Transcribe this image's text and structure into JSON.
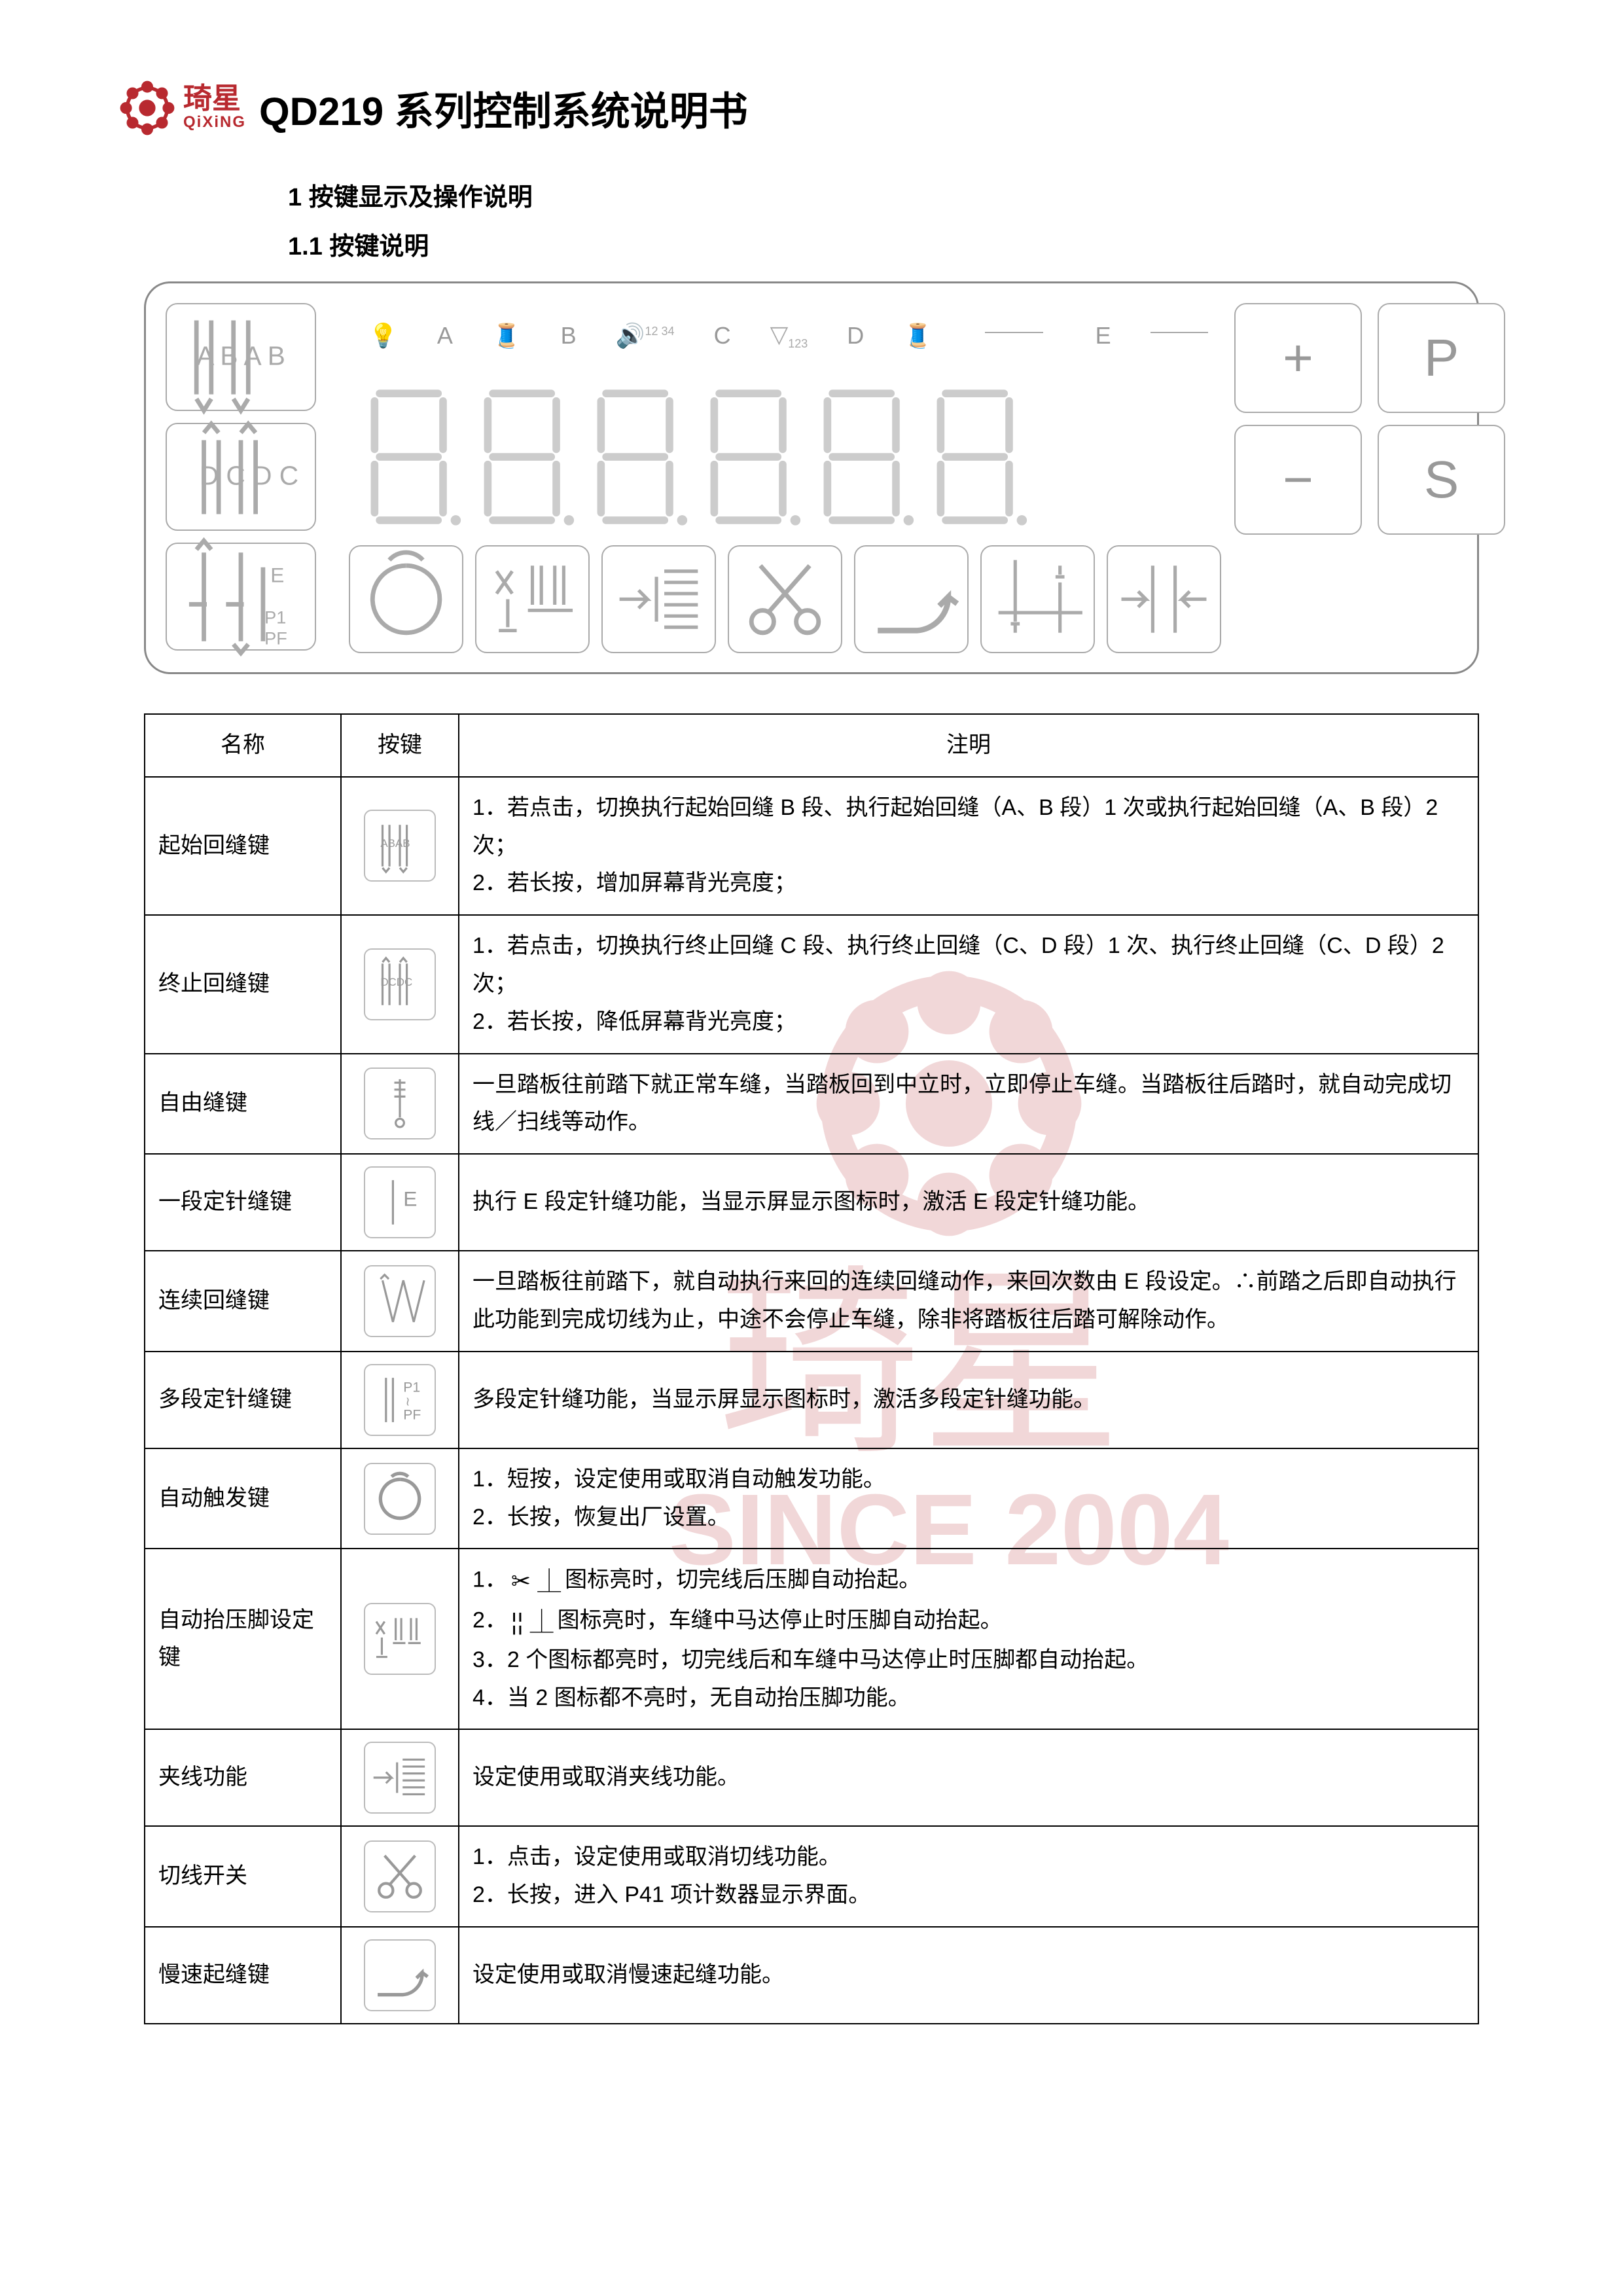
{
  "brand": {
    "cn": "琦星",
    "en": "QiXiNG",
    "logo_color": "#b8292f"
  },
  "doc_title": "QD219 系列控制系统说明书",
  "section1_heading": "1 按键显示及操作说明",
  "section1_1_heading": "1.1 按键说明",
  "panel": {
    "top_labels": [
      "A",
      "B",
      "C",
      "D",
      "E"
    ],
    "right_buttons": [
      "+",
      "P",
      "−",
      "S"
    ],
    "digit_count": 6
  },
  "table": {
    "headers": {
      "name": "名称",
      "button": "按键",
      "desc": "注明"
    },
    "rows": [
      {
        "name": "起始回缝键",
        "icon": "btn-start-backtack",
        "desc_lines": [
          "1．若点击，切换执行起始回缝 B 段、执行起始回缝（A、B 段）1 次或执行起始回缝（A、B 段）2 次；",
          "2．若长按，增加屏幕背光亮度；"
        ]
      },
      {
        "name": "终止回缝键",
        "icon": "btn-end-backtack",
        "desc_lines": [
          "1．若点击，切换执行终止回缝 C 段、执行终止回缝（C、D 段）1 次、执行终止回缝（C、D 段）2 次；",
          "2．若长按，降低屏幕背光亮度；"
        ]
      },
      {
        "name": "自由缝键",
        "icon": "btn-free-sew",
        "desc_lines": [
          "一旦踏板往前踏下就正常车缝，当踏板回到中立时，立即停止车缝。当踏板往后踏时，就自动完成切线／扫线等动作。"
        ]
      },
      {
        "name": "一段定针缝键",
        "icon": "btn-one-seg",
        "desc_lines": [
          "执行 E 段定针缝功能，当显示屏显示图标时，激活 E 段定针缝功能。"
        ]
      },
      {
        "name": "连续回缝键",
        "icon": "btn-continuous",
        "desc_lines": [
          "一旦踏板往前踏下，就自动执行来回的连续回缝动作，来回次数由 E 段设定。∴前踏之后即自动执行此功能到完成切线为止，中途不会停止车缝，除非将踏板往后踏可解除动作。"
        ]
      },
      {
        "name": "多段定针缝键",
        "icon": "btn-multi-seg",
        "desc_lines": [
          "多段定针缝功能，当显示屏显示图标时，激活多段定针缝功能。"
        ]
      },
      {
        "name": "自动触发键",
        "icon": "btn-auto-trigger",
        "desc_lines": [
          "1．短按，设定使用或取消自动触发功能。",
          "2．长按，恢复出厂设置。"
        ]
      },
      {
        "name": "自动抬压脚设定键",
        "icon": "btn-auto-foot",
        "desc_html": true,
        "desc_lines": [
          "1．<span class='inline-icon'>✂ ⏊</span>图标亮时，切完线后压脚自动抬起。",
          "2．<span class='inline-icon'>¦¦ ⏊</span>图标亮时，车缝中马达停止时压脚自动抬起。",
          "3．2 个图标都亮时，切完线后和车缝中马达停止时压脚都自动抬起。",
          "4．当 2 图标都不亮时，无自动抬压脚功能。"
        ]
      },
      {
        "name": "夹线功能",
        "icon": "btn-clamp",
        "desc_lines": [
          "设定使用或取消夹线功能。"
        ]
      },
      {
        "name": "切线开关",
        "icon": "btn-trim",
        "desc_lines": [
          "1．点击，设定使用或取消切线功能。",
          "2．长按，进入 P41 项计数器显示界面。"
        ]
      },
      {
        "name": "慢速起缝键",
        "icon": "btn-slow-start",
        "desc_lines": [
          "设定使用或取消慢速起缝功能。"
        ]
      }
    ]
  },
  "colors": {
    "text": "#000000",
    "border": "#000000",
    "panel_border": "#888888",
    "icon_stroke": "#aaaaaa",
    "watermark": "#b8292f"
  }
}
